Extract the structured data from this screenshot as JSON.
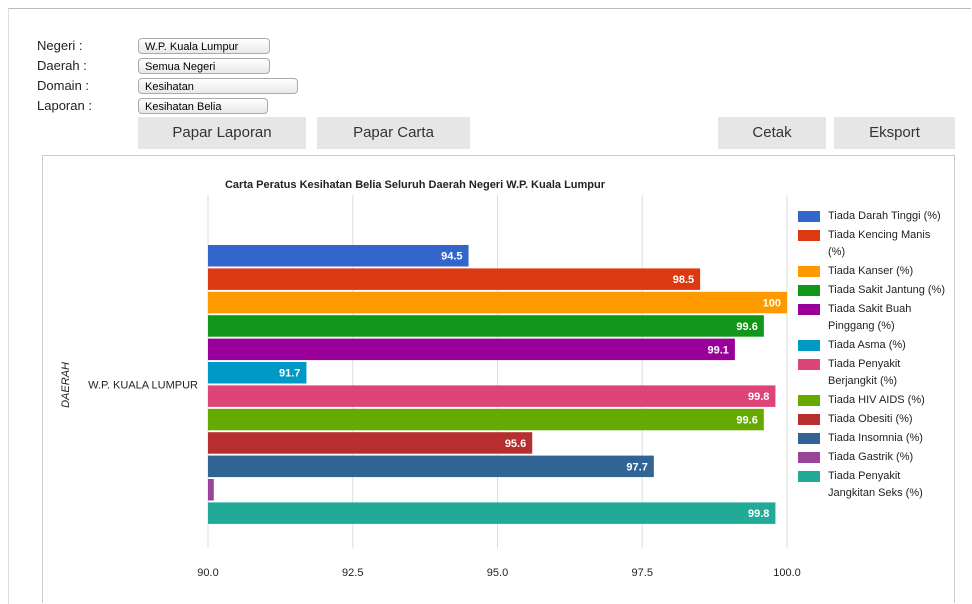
{
  "form": {
    "fields": [
      {
        "label": "Negeri :",
        "value": "W.P. Kuala Lumpur"
      },
      {
        "label": "Daerah :",
        "value": "Semua Negeri"
      },
      {
        "label": "Domain :",
        "value": "Kesihatan"
      },
      {
        "label": "Laporan :",
        "value": "Kesihatan Belia"
      }
    ],
    "buttons": [
      "Papar Laporan",
      "Papar Carta",
      "Cetak",
      "Eksport"
    ]
  },
  "chart_data": {
    "type": "hbar",
    "title": "Carta Peratus Kesihatan Belia Seluruh Daerah Negeri W.P. Kuala Lumpur",
    "y_label": "DAERAH",
    "categories": [
      "W.P. KUALA LUMPUR"
    ],
    "series": [
      {
        "name": "Tiada Darah Tinggi (%)",
        "color": "#3366cc",
        "values": [
          94.5
        ]
      },
      {
        "name": "Tiada Kencing Manis (%)",
        "color": "#dc3912",
        "values": [
          98.5
        ]
      },
      {
        "name": "Tiada Kanser (%)",
        "color": "#ff9900",
        "values": [
          100
        ]
      },
      {
        "name": "Tiada Sakit Jantung (%)",
        "color": "#109618",
        "values": [
          99.6
        ]
      },
      {
        "name": "Tiada Sakit Buah Pinggang (%)",
        "color": "#990099",
        "values": [
          99.1
        ]
      },
      {
        "name": "Tiada Asma (%)",
        "color": "#0099c6",
        "values": [
          91.7
        ]
      },
      {
        "name": "Tiada Penyakit Berjangkit (%)",
        "color": "#dd4477",
        "values": [
          99.8
        ]
      },
      {
        "name": "Tiada HIV AIDS (%)",
        "color": "#66aa00",
        "values": [
          99.6
        ]
      },
      {
        "name": "Tiada Obesiti (%)",
        "color": "#b82e2e",
        "values": [
          95.6
        ]
      },
      {
        "name": "Tiada Insomnia (%)",
        "color": "#316395",
        "values": [
          97.7
        ]
      },
      {
        "name": "Tiada Gastrik (%)",
        "color": "#994499",
        "values": [
          90.1
        ]
      },
      {
        "name": "Tiada Penyakit Jangkitan Seks (%)",
        "color": "#22aa99",
        "values": [
          99.8
        ]
      }
    ],
    "xlim": [
      90,
      100
    ],
    "xticks": [
      {
        "value": 90,
        "label": "90.0"
      },
      {
        "value": 92.5,
        "label": "92.5"
      },
      {
        "value": 95,
        "label": "95.0"
      },
      {
        "value": 97.5,
        "label": "97.5"
      },
      {
        "value": 100,
        "label": "100.0"
      }
    ],
    "grid": true
  }
}
